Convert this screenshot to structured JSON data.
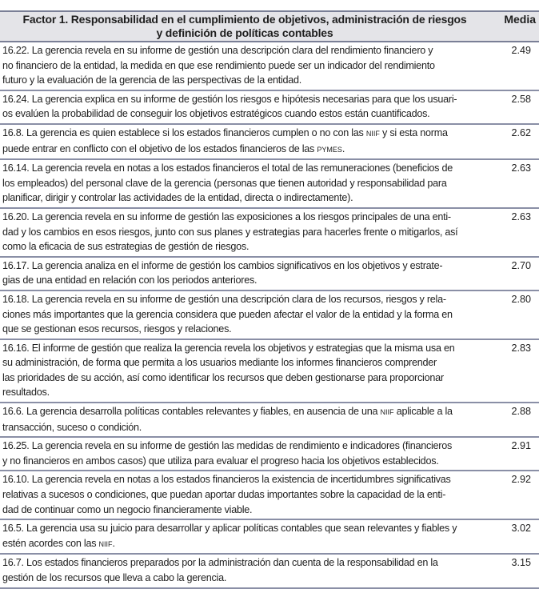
{
  "header": {
    "title_line1": "Factor 1. Responsabilidad en el cumplimiento de objetivos, administración de riesgos",
    "title_line2": "y definición de políticas contables",
    "media_label": "Media"
  },
  "rows": [
    {
      "lines": [
        "16.22. La gerencia revela en su informe de gestión una descripción clara del rendimiento financiero y",
        "no financiero de la entidad, la medida en que ese rendimiento puede ser un indicador del rendimiento",
        "futuro y la evaluación de la gerencia de las perspectivas de la entidad."
      ],
      "media": "2.49"
    },
    {
      "lines": [
        "16.24. La gerencia explica en su informe de gestión los riesgos e hipótesis necesarias para que los usuari-",
        "os evalúen la probabilidad de conseguir los objetivos estratégicos cuando estos están cuantificados."
      ],
      "media": "2.58"
    },
    {
      "lines": [
        "16.8. La gerencia es quien establece si los estados financieros cumplen o no con las NIIF y si esta norma",
        "puede entrar en conflicto con el objetivo de los estados financieros de las PYMES."
      ],
      "media": "2.62"
    },
    {
      "lines": [
        "16.14. La gerencia revela en notas a los estados financieros el total de las remuneraciones (beneficios de",
        "los empleados) del personal clave de la gerencia (personas que tienen autoridad y responsabilidad para",
        "planificar, dirigir y controlar las actividades de la entidad, directa o indirectamente)."
      ],
      "media": "2.63"
    },
    {
      "lines": [
        "16.20. La gerencia revela en su informe de gestión las exposiciones a los riesgos principales de una enti-",
        "dad y los cambios en esos riesgos, junto con sus planes y estrategias para hacerles frente o mitigarlos, así",
        "como la eficacia de sus estrategias de gestión de riesgos."
      ],
      "media": "2.63"
    },
    {
      "lines": [
        "16.17. La gerencia analiza en el informe de gestión los cambios significativos en los objetivos y estrate-",
        "gias de una entidad en relación con los periodos anteriores."
      ],
      "media": "2.70"
    },
    {
      "lines": [
        "16.18. La gerencia revela en su informe de gestión una descripción clara de los recursos, riesgos y rela-",
        "ciones más importantes que la gerencia considera que pueden afectar el valor de la entidad y la forma en",
        "que se gestionan esos recursos, riesgos y relaciones."
      ],
      "media": "2.80"
    },
    {
      "lines": [
        "16.16. El informe de gestión que realiza la gerencia revela los objetivos y estrategias que la misma usa en",
        "su administración, de forma que permita a los usuarios mediante los informes financieros comprender",
        "las prioridades de su acción, así como identificar los recursos que deben gestionarse para proporcionar",
        "resultados."
      ],
      "media": "2.83"
    },
    {
      "lines": [
        "16.6. La gerencia desarrolla políticas contables relevantes y fiables, en ausencia de una NIIF aplicable a la",
        "transacción, suceso o condición."
      ],
      "media": "2.88"
    },
    {
      "lines": [
        "16.25. La gerencia revela en su informe de gestión las medidas de rendimiento e indicadores (financieros",
        "y no financieros en ambos casos) que utiliza para evaluar el progreso hacia los objetivos establecidos."
      ],
      "media": "2.91"
    },
    {
      "lines": [
        "16.10. La gerencia revela en notas a los estados financieros la existencia de incertidumbres significativas",
        "relativas a sucesos o condiciones, que puedan aportar dudas importantes sobre la capacidad de la enti-",
        "dad de continuar como un negocio financieramente viable."
      ],
      "media": "2.92"
    },
    {
      "lines": [
        "16.5. La gerencia usa su juicio para desarrollar y aplicar políticas contables que sean relevantes y fiables y",
        "estén acordes con las NIIF."
      ],
      "media": "3.02"
    },
    {
      "lines": [
        "16.7. Los estados financieros preparados por la administración dan cuenta de la responsabilidad en la",
        "gestión de los recursos que lleva a cabo la gerencia."
      ],
      "media": "3.15"
    }
  ]
}
